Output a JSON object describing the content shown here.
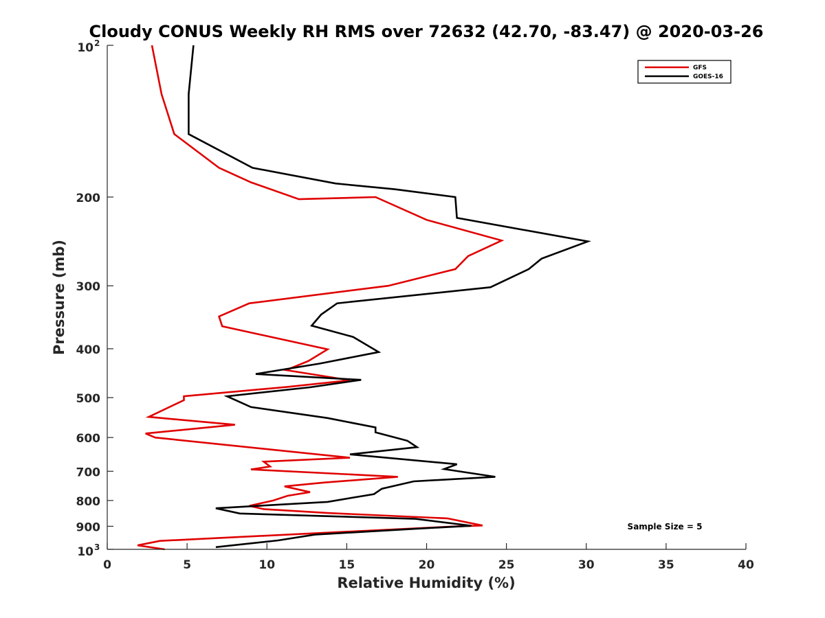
{
  "chart_data": {
    "type": "line",
    "title": "Cloudy CONUS Weekly RH RMS over 72632 (42.70, -83.47) @ 2020-03-26",
    "xlabel": "Relative Humidity (%)",
    "ylabel": "Pressure (mb)",
    "xlim": [
      0,
      40
    ],
    "ylim": [
      100,
      1000
    ],
    "yscale": "log",
    "y_reversed": true,
    "xticks": [
      "0",
      "5",
      "10",
      "15",
      "20",
      "25",
      "30",
      "35",
      "40"
    ],
    "yticks": [
      {
        "value": 100,
        "label": "10",
        "sup": "2"
      },
      {
        "value": 200,
        "label": "200",
        "sup": ""
      },
      {
        "value": 300,
        "label": "300",
        "sup": ""
      },
      {
        "value": 400,
        "label": "400",
        "sup": ""
      },
      {
        "value": 500,
        "label": "500",
        "sup": ""
      },
      {
        "value": 600,
        "label": "600",
        "sup": ""
      },
      {
        "value": 700,
        "label": "700",
        "sup": ""
      },
      {
        "value": 800,
        "label": "800",
        "sup": ""
      },
      {
        "value": 900,
        "label": "900",
        "sup": ""
      },
      {
        "value": 1000,
        "label": "10",
        "sup": "3"
      }
    ],
    "grid": false,
    "legend_position": "top-right",
    "annotation": "Sample Size = 5",
    "series": [
      {
        "name": "GFS",
        "color": "#e00000",
        "points": [
          [
            2.8,
            100
          ],
          [
            3.4,
            125
          ],
          [
            4.2,
            150
          ],
          [
            7.0,
            175
          ],
          [
            9.0,
            187
          ],
          [
            12.0,
            202
          ],
          [
            16.8,
            200
          ],
          [
            20.0,
            222
          ],
          [
            24.7,
            244
          ],
          [
            22.6,
            262
          ],
          [
            21.8,
            278
          ],
          [
            17.6,
            300
          ],
          [
            8.9,
            325
          ],
          [
            7.0,
            345
          ],
          [
            7.2,
            361
          ],
          [
            13.8,
            401
          ],
          [
            12.6,
            423
          ],
          [
            11.2,
            441
          ],
          [
            15.2,
            462
          ],
          [
            11.3,
            476
          ],
          [
            4.8,
            497
          ],
          [
            4.8,
            506
          ],
          [
            2.6,
            546
          ],
          [
            8.0,
            566
          ],
          [
            2.4,
            589
          ],
          [
            3.0,
            600
          ],
          [
            15.2,
            658
          ],
          [
            9.8,
            670
          ],
          [
            10.2,
            685
          ],
          [
            9.0,
            694
          ],
          [
            18.2,
            718
          ],
          [
            13.6,
            737
          ],
          [
            11.1,
            750
          ],
          [
            12.7,
            770
          ],
          [
            11.3,
            783
          ],
          [
            10.4,
            800
          ],
          [
            8.9,
            820
          ],
          [
            9.8,
            832
          ],
          [
            13.8,
            847
          ],
          [
            21.3,
            868
          ],
          [
            23.5,
            897
          ],
          [
            21.6,
            901
          ],
          [
            3.3,
            962
          ],
          [
            1.9,
            982
          ],
          [
            3.6,
            1000
          ]
        ]
      },
      {
        "name": "GOES-16",
        "color": "#000000",
        "points": [
          [
            5.4,
            100
          ],
          [
            5.1,
            125
          ],
          [
            5.1,
            150
          ],
          [
            9.1,
            175
          ],
          [
            14.3,
            188
          ],
          [
            18.0,
            193
          ],
          [
            21.8,
            200
          ],
          [
            21.9,
            220
          ],
          [
            30.1,
            245
          ],
          [
            27.2,
            265
          ],
          [
            26.4,
            278
          ],
          [
            24.0,
            302
          ],
          [
            14.4,
            325
          ],
          [
            13.4,
            342
          ],
          [
            12.8,
            360
          ],
          [
            15.4,
            379
          ],
          [
            17.0,
            406
          ],
          [
            13.3,
            428
          ],
          [
            9.3,
            449
          ],
          [
            15.9,
            461
          ],
          [
            12.7,
            477
          ],
          [
            7.5,
            497
          ],
          [
            9.0,
            522
          ],
          [
            13.8,
            549
          ],
          [
            16.8,
            573
          ],
          [
            16.8,
            586
          ],
          [
            18.8,
            609
          ],
          [
            19.4,
            627
          ],
          [
            15.2,
            648
          ],
          [
            21.9,
            678
          ],
          [
            21.1,
            693
          ],
          [
            24.3,
            718
          ],
          [
            19.2,
            733
          ],
          [
            17.2,
            758
          ],
          [
            16.7,
            777
          ],
          [
            13.8,
            805
          ],
          [
            6.8,
            829
          ],
          [
            8.3,
            849
          ],
          [
            19.3,
            870
          ],
          [
            22.8,
            898
          ],
          [
            19.4,
            910
          ],
          [
            13.0,
            935
          ],
          [
            10.7,
            960
          ],
          [
            6.8,
            990
          ]
        ]
      }
    ]
  }
}
